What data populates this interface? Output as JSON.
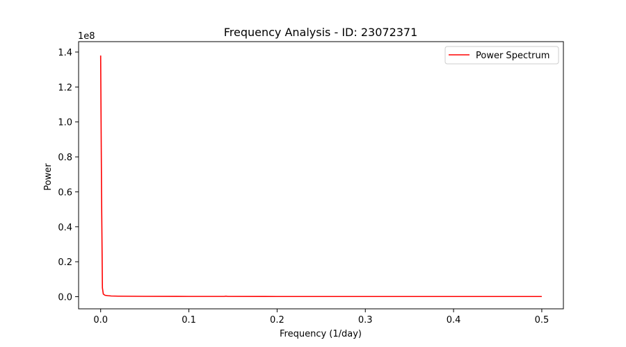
{
  "chart_data": {
    "type": "line",
    "title": "Frequency Analysis - ID: 23072371",
    "xlabel": "Frequency (1/day)",
    "ylabel": "Power",
    "y_offset_text": "1e8",
    "xlim": [
      -0.025,
      0.5245
    ],
    "ylim": [
      -0.0695,
      1.4595
    ],
    "y_scale_factor": 100000000,
    "x_ticks": [
      0.0,
      0.1,
      0.2,
      0.3,
      0.4,
      0.5
    ],
    "x_tick_labels": [
      "0.0",
      "0.1",
      "0.2",
      "0.3",
      "0.4",
      "0.5"
    ],
    "y_ticks": [
      0.0,
      0.2,
      0.4,
      0.6,
      0.8,
      1.0,
      1.2,
      1.4
    ],
    "y_tick_labels": [
      "0.0",
      "0.2",
      "0.4",
      "0.6",
      "0.8",
      "1.0",
      "1.2",
      "1.4"
    ],
    "grid": false,
    "legend_position": "top-right",
    "series": [
      {
        "name": "Power Spectrum",
        "color": "#ff0000",
        "x": [
          0.0,
          0.001,
          0.002,
          0.003,
          0.005,
          0.008,
          0.012,
          0.02,
          0.05,
          0.1,
          0.14,
          0.142,
          0.144,
          0.2,
          0.3,
          0.4,
          0.5
        ],
        "y": [
          1.38,
          0.6,
          0.05,
          0.015,
          0.008,
          0.006,
          0.004,
          0.003,
          0.002,
          0.0015,
          0.0015,
          0.003,
          0.0015,
          0.001,
          0.001,
          0.001,
          0.001
        ]
      }
    ]
  }
}
